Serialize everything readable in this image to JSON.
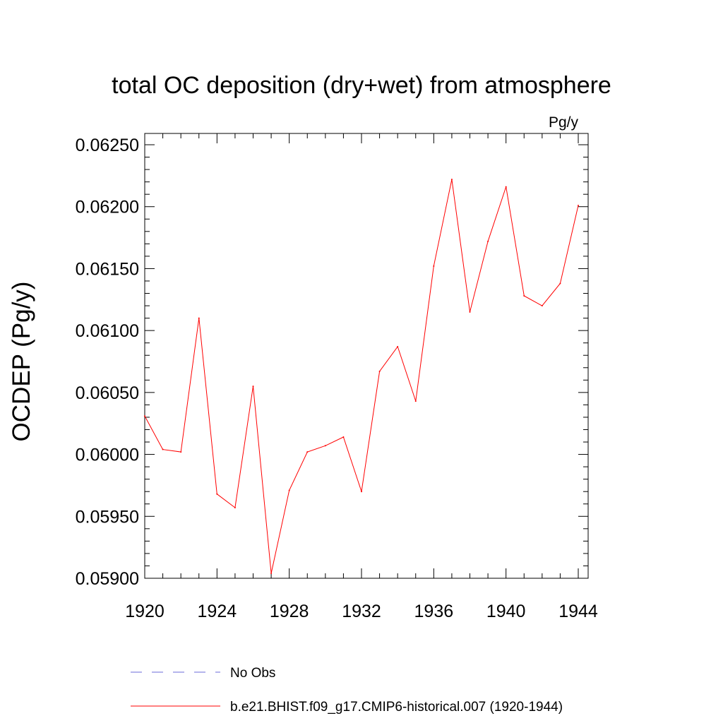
{
  "chart_data": {
    "type": "line",
    "title": "total OC deposition (dry+wet) from atmosphere",
    "units": "Pg/y",
    "ylabel": "OCDEP  (Pg/y)",
    "xlabel": "",
    "xlim": [
      1920,
      1944
    ],
    "ylim": [
      0.059,
      0.0625
    ],
    "x_major_ticks": [
      1920,
      1924,
      1928,
      1932,
      1936,
      1940,
      1944
    ],
    "x_tick_labels": [
      "1920",
      "1924",
      "1928",
      "1932",
      "1936",
      "1940",
      "1944"
    ],
    "y_major_ticks": [
      0.059,
      0.0595,
      0.06,
      0.0605,
      0.061,
      0.0615,
      0.062,
      0.0625
    ],
    "y_tick_labels": [
      "0.05900",
      "0.05950",
      "0.06000",
      "0.06050",
      "0.06100",
      "0.06150",
      "0.06200",
      "0.06250"
    ],
    "grid": false,
    "legend_position": "bottom",
    "series": [
      {
        "name": "b.e21.BHIST.f09_g17.CMIP6-historical.007 (1920-1944)",
        "color": "#ff0000",
        "style": "solid",
        "x": [
          1920,
          1921,
          1922,
          1923,
          1924,
          1925,
          1926,
          1927,
          1928,
          1929,
          1930,
          1931,
          1932,
          1933,
          1934,
          1935,
          1936,
          1937,
          1938,
          1939,
          1940,
          1941,
          1942,
          1943,
          1944
        ],
        "values": [
          0.06031,
          0.06004,
          0.06002,
          0.0611,
          0.05968,
          0.05957,
          0.06055,
          0.05904,
          0.05971,
          0.06002,
          0.06007,
          0.06014,
          0.0597,
          0.06067,
          0.06087,
          0.06043,
          0.06152,
          0.06222,
          0.06115,
          0.06172,
          0.06216,
          0.06128,
          0.0612,
          0.06138,
          0.06201
        ]
      }
    ],
    "legend": [
      {
        "label": "No Obs",
        "color": "#6b6bd8",
        "style": "dashed"
      },
      {
        "label": "b.e21.BHIST.f09_g17.CMIP6-historical.007 (1920-1944)",
        "color": "#ff0000",
        "style": "solid"
      }
    ]
  }
}
